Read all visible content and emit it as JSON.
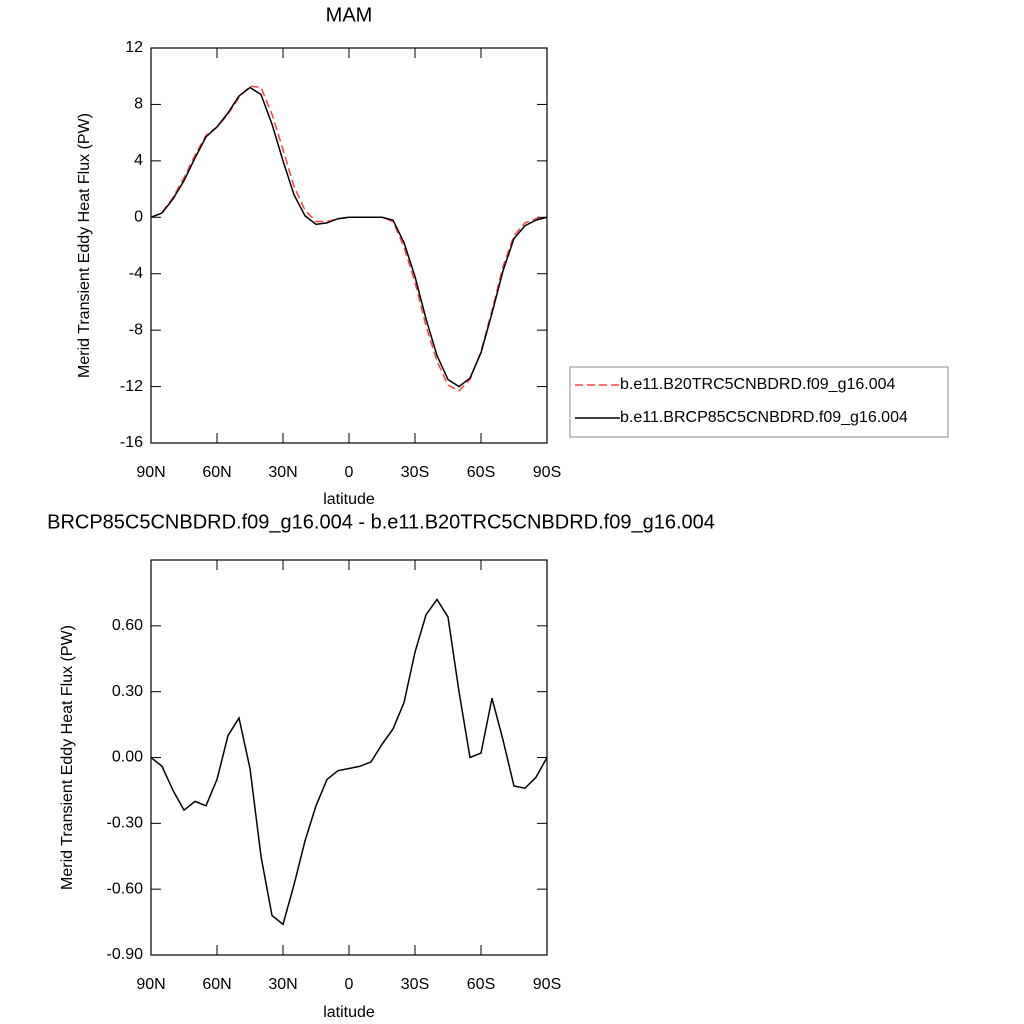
{
  "chart_data": [
    {
      "type": "line",
      "title": "MAM",
      "x_label": "latitude",
      "y_label": "Merid Transient Eddy Heat Flux (PW)",
      "x": [
        90,
        85,
        80,
        75,
        70,
        65,
        60,
        55,
        50,
        45,
        40,
        35,
        30,
        25,
        20,
        15,
        10,
        5,
        0,
        -5,
        -10,
        -15,
        -20,
        -25,
        -30,
        -35,
        -40,
        -45,
        -50,
        -55,
        -60,
        -65,
        -70,
        -75,
        -80,
        -85,
        -90
      ],
      "xlim": [
        90,
        -90
      ],
      "xticks": [
        {
          "value": 90,
          "label": "90N"
        },
        {
          "value": 60,
          "label": "60N"
        },
        {
          "value": 30,
          "label": "30N"
        },
        0,
        {
          "value": -30,
          "label": "30S"
        },
        {
          "value": -60,
          "label": "60S"
        },
        {
          "value": -90,
          "label": "90S"
        }
      ],
      "ylim": [
        -16,
        12
      ],
      "yticks": [
        -16,
        -12,
        -8,
        -4,
        0,
        4,
        8,
        12
      ],
      "legend": "right",
      "series": [
        {
          "name": "b.e11.B20TRC5CNBDRD.f09_g16.004",
          "color": "#ff4040",
          "dash": true,
          "values": [
            0,
            0.35,
            1.4,
            2.8,
            4.4,
            5.8,
            6.4,
            7.3,
            8.5,
            9.3,
            9.2,
            7.3,
            4.8,
            2.2,
            0.5,
            -0.3,
            -0.3,
            -0.1,
            0,
            0,
            0,
            0,
            -0.3,
            -2.1,
            -4.6,
            -7.7,
            -10.2,
            -11.9,
            -12.3,
            -11.5,
            -9.5,
            -6.6,
            -3.5,
            -1.3,
            -0.4,
            -0.1,
            0
          ]
        },
        {
          "name": "b.e11.BRCP85C5CNBDRD.f09_g16.004",
          "color": "#000000",
          "dash": false,
          "values": [
            0,
            0.3,
            1.3,
            2.6,
            4.2,
            5.7,
            6.4,
            7.4,
            8.6,
            9.2,
            8.7,
            6.6,
            4.0,
            1.6,
            0.1,
            -0.5,
            -0.4,
            -0.1,
            0,
            0,
            0,
            0,
            -0.2,
            -1.8,
            -4.2,
            -7.2,
            -9.8,
            -11.5,
            -12.0,
            -11.4,
            -9.6,
            -6.8,
            -3.8,
            -1.5,
            -0.6,
            -0.2,
            0
          ]
        }
      ]
    },
    {
      "type": "line",
      "title": "BRCP85C5CNBDRD.f09_g16.004 - b.e11.B20TRC5CNBDRD.f09_g16.004",
      "x_label": "latitude",
      "y_label": "Merid Transient Eddy Heat Flux (PW)",
      "x": [
        90,
        85,
        80,
        75,
        70,
        65,
        60,
        55,
        50,
        45,
        40,
        35,
        30,
        25,
        20,
        15,
        10,
        5,
        0,
        -5,
        -10,
        -15,
        -20,
        -25,
        -30,
        -35,
        -40,
        -45,
        -50,
        -55,
        -60,
        -65,
        -70,
        -75,
        -80,
        -85,
        -90
      ],
      "xlim": [
        90,
        -90
      ],
      "xticks": [
        {
          "value": 90,
          "label": "90N"
        },
        {
          "value": 60,
          "label": "60N"
        },
        {
          "value": 30,
          "label": "30N"
        },
        0,
        {
          "value": -30,
          "label": "30S"
        },
        {
          "value": -60,
          "label": "60S"
        },
        {
          "value": -90,
          "label": "90S"
        }
      ],
      "ylim": [
        -0.9,
        0.9
      ],
      "yticks": [
        {
          "value": -0.9,
          "label": "-0.90"
        },
        {
          "value": -0.6,
          "label": "-0.60"
        },
        {
          "value": -0.3,
          "label": "-0.30"
        },
        {
          "value": 0,
          "label": "0.00"
        },
        {
          "value": 0.3,
          "label": "0.30"
        },
        {
          "value": 0.6,
          "label": "0.60"
        }
      ],
      "series": [
        {
          "color": "#000000",
          "dash": false,
          "values": [
            0,
            -0.04,
            -0.15,
            -0.24,
            -0.2,
            -0.22,
            -0.1,
            0.1,
            0.18,
            -0.05,
            -0.45,
            -0.72,
            -0.76,
            -0.58,
            -0.38,
            -0.22,
            -0.1,
            -0.06,
            -0.05,
            -0.04,
            -0.02,
            0.06,
            0.13,
            0.25,
            0.48,
            0.65,
            0.72,
            0.64,
            0.3,
            0,
            0.02,
            0.27,
            0.08,
            -0.13,
            -0.14,
            -0.09,
            0
          ]
        }
      ]
    }
  ]
}
